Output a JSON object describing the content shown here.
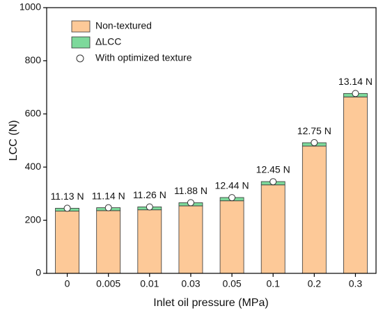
{
  "chart_data": {
    "type": "bar",
    "stacked": true,
    "x_label": "Inlet oil pressure (MPa)",
    "y_label": "LCC (N)",
    "categories": [
      "0",
      "0.005",
      "0.01",
      "0.03",
      "0.05",
      "0.1",
      "0.2",
      "0.3"
    ],
    "series": [
      {
        "name": "Non-textured",
        "color": "#fdc998",
        "values": [
          234,
          236,
          239,
          254,
          273,
          333,
          479,
          664
        ]
      },
      {
        "name": "ΔLCC",
        "color": "#7dd99b",
        "values": [
          11.13,
          11.14,
          11.26,
          11.88,
          12.44,
          12.45,
          12.75,
          13.14
        ],
        "value_labels": [
          "11.13 N",
          "11.14 N",
          "11.26 N",
          "11.88 N",
          "12.44 N",
          "12.45 N",
          "12.75 N",
          "13.14 N"
        ]
      },
      {
        "name": "With optimized texture",
        "type": "scatter",
        "color": "#ffffff",
        "values": [
          245,
          247,
          250,
          266,
          285,
          345,
          492,
          677
        ]
      }
    ],
    "ylim": [
      0,
      1000
    ],
    "yticks": [
      0,
      200,
      400,
      600,
      800,
      1000
    ],
    "legend": "upper left"
  }
}
